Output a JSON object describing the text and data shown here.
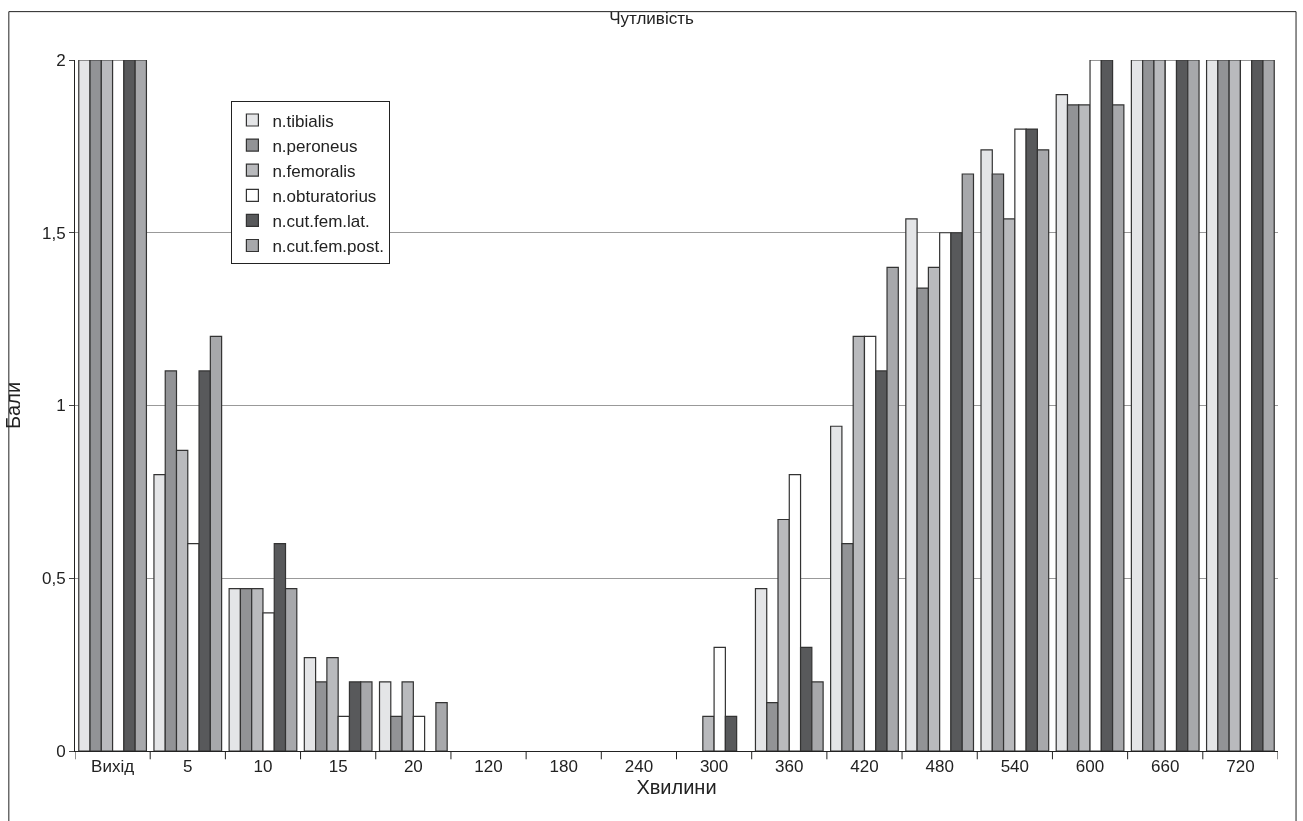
{
  "chart_data": {
    "type": "bar",
    "title": "Чутливість",
    "xlabel": "Хвилини",
    "ylabel": "Бали",
    "categories": [
      "Вихід",
      "5",
      "10",
      "15",
      "20",
      "120",
      "180",
      "240",
      "300",
      "360",
      "420",
      "480",
      "540",
      "600",
      "660",
      "720"
    ],
    "series": [
      {
        "name": "n.tibialis",
        "color": "#e4e5e7",
        "values": [
          2,
          0.8,
          0.47,
          0.27,
          0.2,
          0,
          0,
          0,
          0,
          0.47,
          0.94,
          1.54,
          1.74,
          1.9,
          2,
          2
        ]
      },
      {
        "name": "n.peroneus",
        "color": "#929396",
        "values": [
          2,
          1.1,
          0.47,
          0.2,
          0.1,
          0,
          0,
          0,
          0,
          0.14,
          0.6,
          1.34,
          1.67,
          1.87,
          2,
          2
        ]
      },
      {
        "name": "n.femoralis",
        "color": "#b9babd",
        "values": [
          2,
          0.87,
          0.47,
          0.27,
          0.2,
          0,
          0,
          0,
          0.1,
          0.67,
          1.2,
          1.4,
          1.54,
          1.87,
          2,
          2
        ]
      },
      {
        "name": "n.obturatorius",
        "color": "#ffffff",
        "values": [
          2,
          0.6,
          0.4,
          0.1,
          0.1,
          0,
          0,
          0,
          0.3,
          0.8,
          1.2,
          1.5,
          1.8,
          2,
          2,
          2
        ]
      },
      {
        "name": "n.cut.fem.lat.",
        "color": "#58595b",
        "values": [
          2,
          1.1,
          0.6,
          0.2,
          0,
          0,
          0,
          0,
          0.1,
          0.3,
          1.1,
          1.5,
          1.8,
          2,
          2,
          2
        ]
      },
      {
        "name": "n.cut.fem.post.",
        "color": "#a7a8ab",
        "values": [
          2,
          1.2,
          0.47,
          0.2,
          0.14,
          0,
          0,
          0,
          0,
          0.2,
          1.4,
          1.67,
          1.74,
          1.87,
          2,
          2
        ]
      }
    ],
    "ylim": [
      0,
      2
    ],
    "yticks": [
      0,
      {
        "value": 0.5,
        "label": "0,5"
      },
      1,
      {
        "value": 1.5,
        "label": "1,5"
      },
      2
    ],
    "grid": "y",
    "legend": "top left"
  }
}
